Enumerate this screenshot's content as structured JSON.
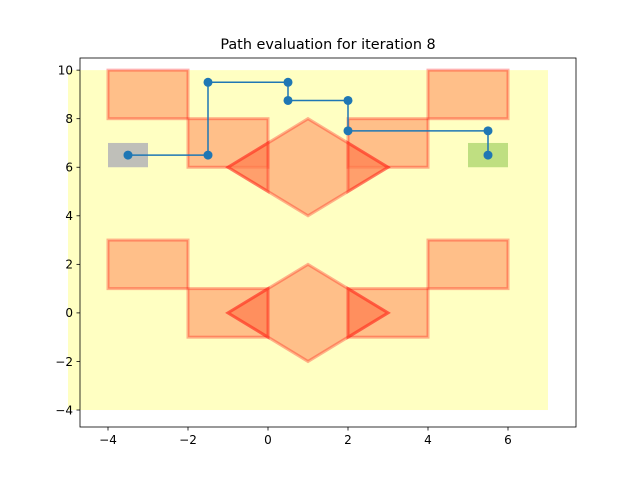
{
  "chart_data": {
    "type": "line",
    "title": "Path evaluation for iteration 8",
    "xlabel": "",
    "ylabel": "",
    "xlim": [
      -4.7,
      7.7
    ],
    "ylim": [
      -4.7,
      10.5
    ],
    "grid": false,
    "xticks": [
      -4,
      -2,
      0,
      2,
      4,
      6
    ],
    "yticks": [
      -4,
      -2,
      0,
      2,
      4,
      6,
      8,
      10
    ],
    "xtick_labels": [
      "−4",
      "−2",
      "0",
      "2",
      "4",
      "6"
    ],
    "ytick_labels": [
      "−4",
      "−2",
      "0",
      "2",
      "4",
      "6",
      "8",
      "10"
    ],
    "colors": {
      "region": "#ffff99",
      "obstacle_fill": "#ff7f50",
      "obstacle_edge": "#ff0000",
      "start": "#8080b0",
      "goal": "#80c040",
      "path": "#1f77b4"
    },
    "region": {
      "x": [
        -5,
        7
      ],
      "y": [
        -4,
        10
      ]
    },
    "start_box": {
      "x": [
        -4,
        -3
      ],
      "y": [
        6,
        7
      ]
    },
    "goal_box": {
      "x": [
        5,
        6
      ],
      "y": [
        6,
        7
      ]
    },
    "rect_obstacles": [
      {
        "x": [
          -4,
          -2
        ],
        "y": [
          8,
          10
        ]
      },
      {
        "x": [
          -2,
          0
        ],
        "y": [
          6,
          8
        ]
      },
      {
        "x": [
          2,
          4
        ],
        "y": [
          6,
          8
        ]
      },
      {
        "x": [
          4,
          6
        ],
        "y": [
          8,
          10
        ]
      },
      {
        "x": [
          -4,
          -2
        ],
        "y": [
          1,
          3
        ]
      },
      {
        "x": [
          -2,
          0
        ],
        "y": [
          -1,
          1
        ]
      },
      {
        "x": [
          2,
          4
        ],
        "y": [
          -1,
          1
        ]
      },
      {
        "x": [
          4,
          6
        ],
        "y": [
          1,
          3
        ]
      }
    ],
    "poly_obstacles": [
      [
        [
          1,
          8
        ],
        [
          3,
          6
        ],
        [
          1,
          4
        ],
        [
          -1,
          6
        ]
      ],
      [
        [
          1,
          2
        ],
        [
          3,
          0
        ],
        [
          1,
          -2
        ],
        [
          -1,
          0
        ]
      ],
      [
        [
          -1,
          6
        ],
        [
          0,
          7
        ],
        [
          0,
          5
        ]
      ],
      [
        [
          3,
          6
        ],
        [
          2,
          7
        ],
        [
          2,
          5
        ]
      ],
      [
        [
          -1,
          0
        ],
        [
          0,
          1
        ],
        [
          0,
          -1
        ]
      ],
      [
        [
          3,
          0
        ],
        [
          2,
          1
        ],
        [
          2,
          -1
        ]
      ]
    ],
    "series": [
      {
        "x": [
          -3.5,
          -1.5,
          -1.5,
          0.5,
          0.5,
          2.0,
          2.0,
          5.5,
          5.5
        ],
        "y": [
          6.5,
          6.5,
          9.5,
          9.5,
          8.75,
          8.75,
          7.5,
          7.5,
          6.5
        ]
      }
    ]
  }
}
